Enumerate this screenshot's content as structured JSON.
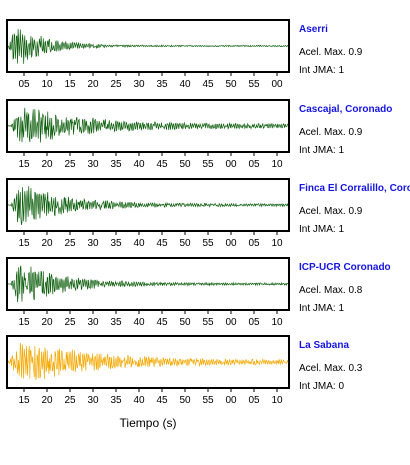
{
  "xlabel": "Tiempo (s)",
  "chart_data": [
    {
      "type": "line",
      "station": "Aserri",
      "stats": [
        "Acel. Max. 0.9",
        "Int JMA: 1"
      ],
      "tick_labels": [
        "05",
        "10",
        "15",
        "20",
        "25",
        "30",
        "35",
        "40",
        "45",
        "50",
        "55",
        "00"
      ],
      "color": "#0b5e0b",
      "peak_amplitude": 0.9,
      "envelope": {
        "onset": 0.0,
        "peak": 0.03,
        "decay": 0.1,
        "floor": 0.03
      }
    },
    {
      "type": "line",
      "station": "Cascajal, Coronado",
      "stats": [
        "Acel. Max. 0.9",
        "Int JMA: 1"
      ],
      "tick_labels": [
        "15",
        "20",
        "25",
        "30",
        "35",
        "40",
        "45",
        "50",
        "55",
        "00",
        "05",
        "10"
      ],
      "color": "#0b5e0b",
      "peak_amplitude": 0.9,
      "envelope": {
        "onset": 0.01,
        "peak": 0.05,
        "decay": 0.2,
        "floor": 0.1
      }
    },
    {
      "type": "line",
      "station": "Finca El Corralillo, Coronado",
      "stats": [
        "Acel. Max. 0.9",
        "Int JMA: 1"
      ],
      "tick_labels": [
        "15",
        "20",
        "25",
        "30",
        "35",
        "40",
        "45",
        "50",
        "55",
        "00",
        "05",
        "10"
      ],
      "color": "#0b5e0b",
      "peak_amplitude": 0.9,
      "envelope": {
        "onset": 0.01,
        "peak": 0.04,
        "decay": 0.16,
        "floor": 0.06
      }
    },
    {
      "type": "line",
      "station": "ICP-UCR Coronado",
      "stats": [
        "Acel. Max. 0.8",
        "Int JMA: 1"
      ],
      "tick_labels": [
        "15",
        "20",
        "25",
        "30",
        "35",
        "40",
        "45",
        "50",
        "55",
        "00",
        "05",
        "10"
      ],
      "color": "#0b5e0b",
      "peak_amplitude": 0.8,
      "envelope": {
        "onset": 0.01,
        "peak": 0.04,
        "decay": 0.15,
        "floor": 0.05
      }
    },
    {
      "type": "line",
      "station": "La Sabana",
      "stats": [
        "Acel. Max. 0.3",
        "Int JMA: 0"
      ],
      "tick_labels": [
        "15",
        "20",
        "25",
        "30",
        "35",
        "40",
        "45",
        "50",
        "55",
        "00",
        "05",
        "10"
      ],
      "color": "#f5a800",
      "peak_amplitude": 0.3,
      "envelope": {
        "onset": 0.0,
        "peak": 0.05,
        "decay": 0.25,
        "floor": 0.1
      }
    }
  ]
}
